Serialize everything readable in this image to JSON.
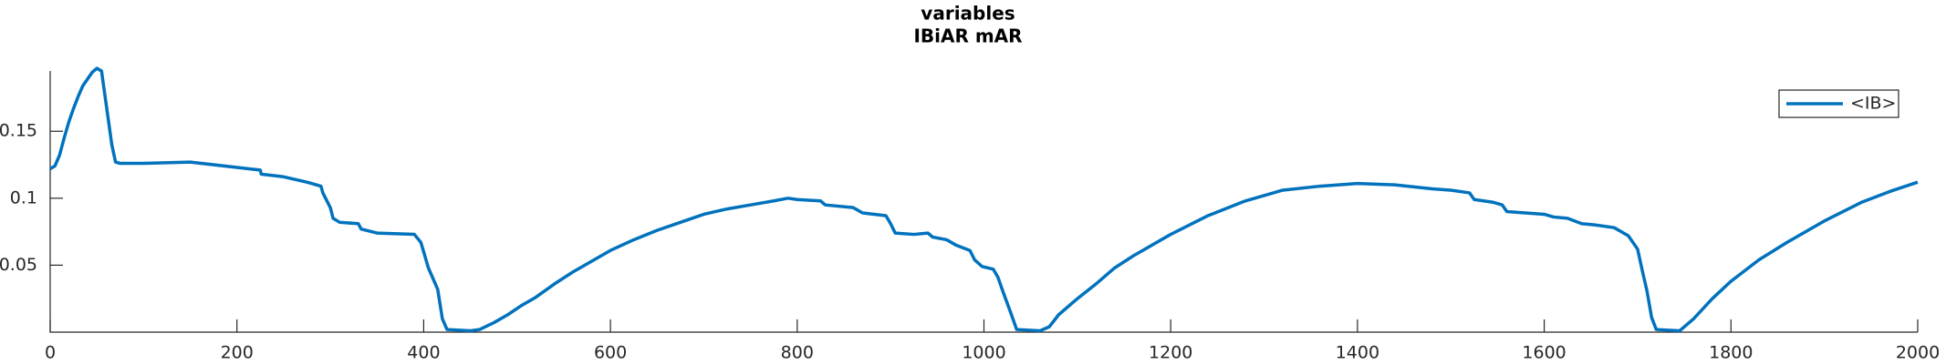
{
  "chart_data": {
    "type": "line",
    "title": "variables",
    "subtitle": "IBiAR mAR",
    "x": [
      0,
      5,
      10,
      15,
      20,
      25,
      30,
      35,
      40,
      45,
      50,
      55,
      58,
      62,
      66,
      70,
      75,
      100,
      150,
      200,
      225,
      226,
      250,
      275,
      290,
      292,
      300,
      303,
      310,
      330,
      333,
      350,
      390,
      397,
      400,
      405,
      410,
      415,
      420,
      425,
      450,
      460,
      475,
      490,
      505,
      520,
      540,
      560,
      580,
      600,
      625,
      650,
      675,
      700,
      725,
      750,
      775,
      790,
      800,
      825,
      830,
      860,
      870,
      895,
      900,
      905,
      925,
      940,
      945,
      960,
      970,
      985,
      990,
      998,
      1010,
      1015,
      1020,
      1030,
      1035,
      1060,
      1070,
      1080,
      1100,
      1120,
      1140,
      1160,
      1200,
      1240,
      1280,
      1320,
      1360,
      1400,
      1440,
      1480,
      1500,
      1520,
      1525,
      1545,
      1555,
      1560,
      1580,
      1600,
      1610,
      1625,
      1640,
      1655,
      1675,
      1690,
      1700,
      1705,
      1710,
      1715,
      1720,
      1745,
      1760,
      1780,
      1800,
      1830,
      1860,
      1900,
      1940,
      1970,
      2000
    ],
    "series": [
      {
        "name": "<IB>",
        "color": "#0072bd",
        "values": [
          0.122,
          0.124,
          0.132,
          0.145,
          0.157,
          0.167,
          0.176,
          0.184,
          0.189,
          0.194,
          0.197,
          0.195,
          0.18,
          0.16,
          0.14,
          0.127,
          0.126,
          0.126,
          0.127,
          0.123,
          0.121,
          0.118,
          0.116,
          0.112,
          0.109,
          0.104,
          0.093,
          0.085,
          0.082,
          0.081,
          0.077,
          0.074,
          0.073,
          0.067,
          0.06,
          0.048,
          0.04,
          0.032,
          0.01,
          0.002,
          0.001,
          0.002,
          0.007,
          0.013,
          0.02,
          0.026,
          0.036,
          0.045,
          0.053,
          0.061,
          0.069,
          0.076,
          0.082,
          0.088,
          0.092,
          0.095,
          0.098,
          0.1,
          0.099,
          0.098,
          0.095,
          0.093,
          0.089,
          0.087,
          0.081,
          0.074,
          0.073,
          0.074,
          0.071,
          0.069,
          0.065,
          0.061,
          0.054,
          0.049,
          0.047,
          0.041,
          0.031,
          0.012,
          0.002,
          0.001,
          0.004,
          0.013,
          0.025,
          0.036,
          0.048,
          0.057,
          0.073,
          0.087,
          0.098,
          0.106,
          0.109,
          0.111,
          0.11,
          0.107,
          0.106,
          0.104,
          0.099,
          0.097,
          0.095,
          0.09,
          0.089,
          0.088,
          0.086,
          0.085,
          0.081,
          0.08,
          0.078,
          0.072,
          0.062,
          0.046,
          0.031,
          0.011,
          0.002,
          0.001,
          0.01,
          0.025,
          0.038,
          0.054,
          0.067,
          0.083,
          0.097,
          0.105,
          0.112
        ]
      }
    ],
    "xlim": [
      0,
      2000
    ],
    "xticks": [
      0,
      200,
      400,
      600,
      800,
      1000,
      1200,
      1400,
      1600,
      1800,
      2000
    ],
    "ylim": [
      0,
      0.195
    ],
    "yticks": [
      0.05,
      0.1,
      0.15
    ],
    "grid": false,
    "legend": "northeast"
  }
}
